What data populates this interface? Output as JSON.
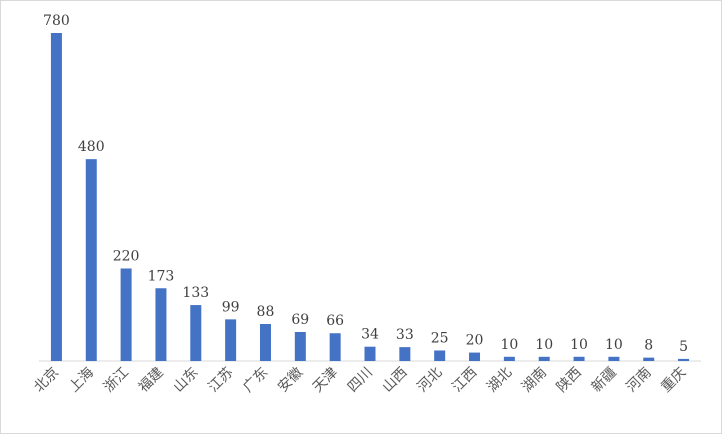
{
  "chart_data": {
    "type": "bar",
    "categories": [
      "北京",
      "上海",
      "浙江",
      "福建",
      "山东",
      "江苏",
      "广东",
      "安徽",
      "天津",
      "四川",
      "山西",
      "河北",
      "江西",
      "湖北",
      "湖南",
      "陕西",
      "新疆",
      "河南",
      "重庆"
    ],
    "values": [
      780,
      480,
      220,
      173,
      133,
      99,
      88,
      69,
      66,
      34,
      33,
      25,
      20,
      10,
      10,
      10,
      10,
      8,
      5
    ],
    "value_labels": [
      "780",
      "480",
      "220",
      "173",
      "133",
      "99",
      "88",
      "69",
      "66",
      "34",
      "33",
      "25",
      "20",
      "10",
      "10",
      "10",
      "10",
      "8",
      "5"
    ],
    "title": "",
    "xlabel": "",
    "ylabel": "",
    "ylim": [
      0,
      780
    ],
    "grid": false,
    "legend": "none",
    "bar_color": "#4472c4",
    "axis_color": "#d9d9d9"
  }
}
